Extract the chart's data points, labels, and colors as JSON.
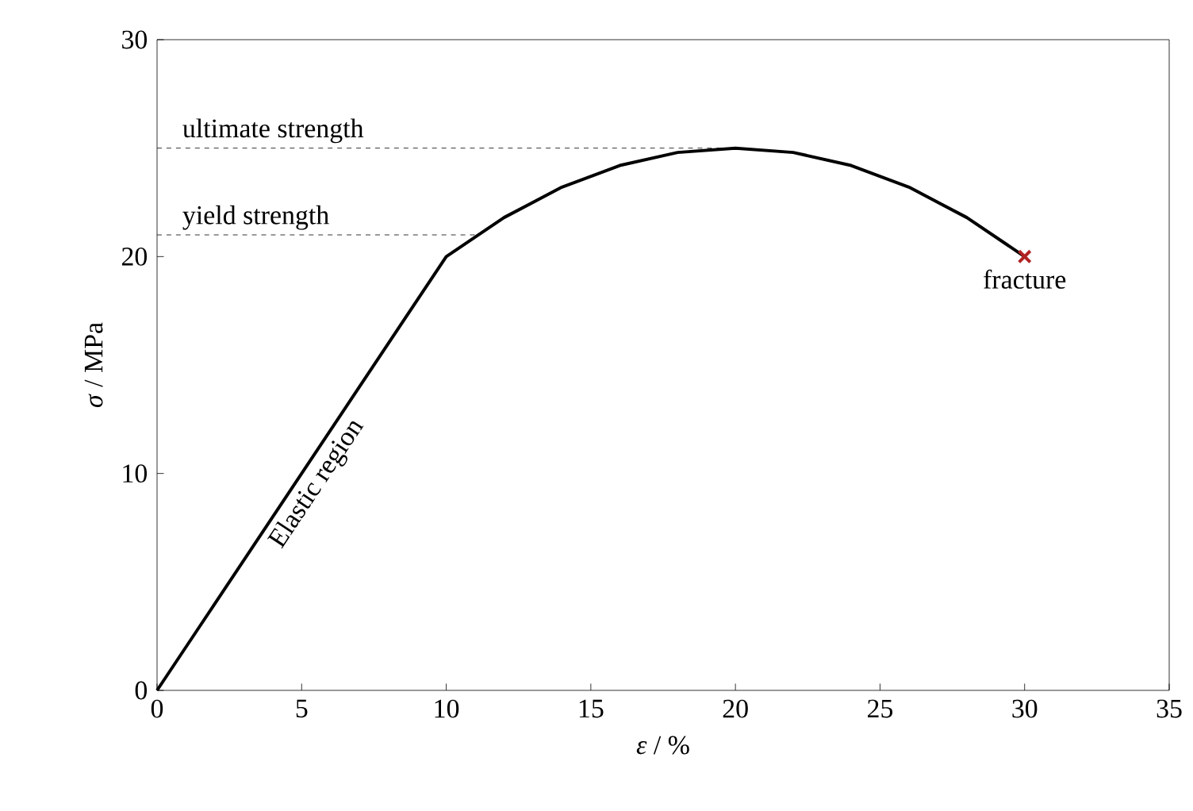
{
  "chart_data": {
    "type": "line",
    "xlabel": "*ε* / %",
    "ylabel": "*σ* / MPa",
    "xlim": [
      0,
      35
    ],
    "xticks": [
      0,
      5,
      10,
      15,
      20,
      25,
      30,
      35
    ],
    "ylim": [
      0,
      30
    ],
    "yticks": [
      0,
      10,
      20,
      30
    ],
    "series": [
      {
        "color": "#000000",
        "x": [
          0,
          10,
          12,
          14,
          16,
          18,
          20,
          22,
          24,
          26,
          28,
          30
        ],
        "values": [
          0,
          20,
          21.8,
          23.2,
          24.2,
          24.8,
          25,
          24.8,
          24.2,
          23.2,
          21.8,
          20
        ]
      },
      {
        "type": "scatter",
        "color": "#b22222",
        "marker": "cross",
        "x": [
          30
        ],
        "values": [
          20
        ]
      }
    ],
    "ref_lines": [
      {
        "axis": "y",
        "value": 25,
        "label": "ultimate strength",
        "line_style": "dashed"
      },
      {
        "axis": "y",
        "value": 21,
        "label": "yield strength",
        "line_style": "dashed"
      }
    ],
    "annotations": [
      {
        "text": "Elastic region",
        "x": 5,
        "y": 10
      },
      {
        "text": "fracture",
        "x": 30,
        "y": 20
      }
    ],
    "grid": false
  }
}
